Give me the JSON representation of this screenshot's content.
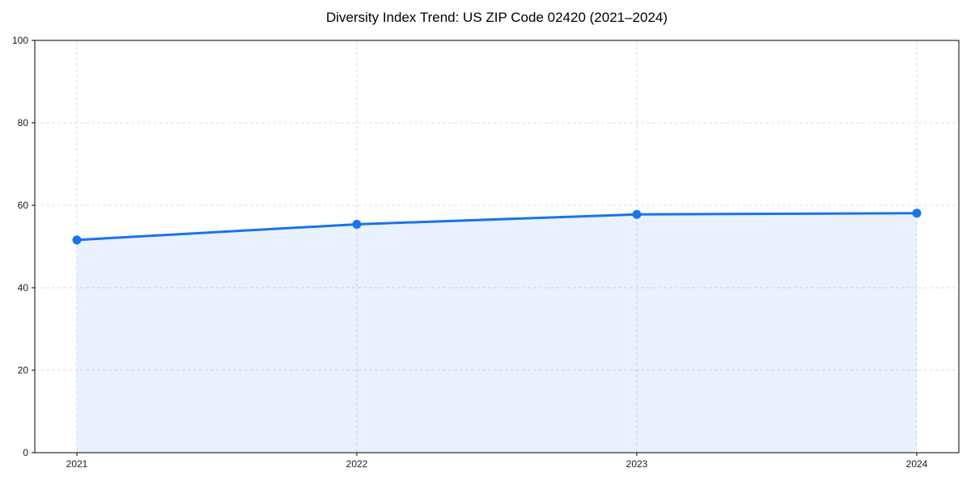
{
  "chart_data": {
    "type": "area",
    "title": "Diversity Index Trend: US ZIP Code 02420 (2021–2024)",
    "x": [
      2021,
      2022,
      2023,
      2024
    ],
    "series": [
      {
        "name": "Diversity Index",
        "values": [
          51.6,
          55.4,
          57.8,
          58.1
        ]
      }
    ],
    "xlabel": "",
    "ylabel": "",
    "ylim": [
      0,
      100
    ],
    "yticks": [
      0,
      20,
      40,
      60,
      80,
      100
    ],
    "grid": true,
    "grid_style": "dashed",
    "legend": false,
    "marker": "circle",
    "colors": {
      "line": "#1a73e8",
      "fill": "#1a73e8",
      "fill_opacity": 0.1,
      "grid": "#dcdcdc",
      "spine": "#000000",
      "tick_text": "#1a1a1a",
      "background": "#ffffff"
    }
  }
}
